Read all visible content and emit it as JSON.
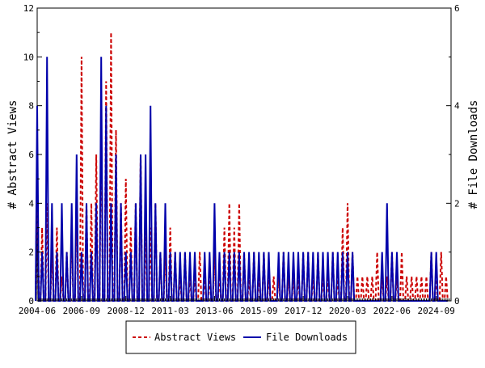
{
  "chart_data": {
    "type": "line",
    "grid": false,
    "legend_position": "bottom",
    "xlabel": "",
    "ylabel_left": "# Abstract Views",
    "ylabel_right": "# File Downloads",
    "x_range": [
      "2004-06",
      "2025-06"
    ],
    "ylim_left": [
      0,
      12
    ],
    "ylim_right": [
      0,
      6
    ],
    "y_ticks_left": [
      "0",
      "2",
      "4",
      "6",
      "8",
      "10",
      "12"
    ],
    "y_ticks_right": [
      "0",
      "2",
      "4",
      "6"
    ],
    "x_ticks": [
      {
        "date": "2004-06",
        "label": "2004-06"
      },
      {
        "date": "2006-09",
        "label": "2006-09"
      },
      {
        "date": "2008-12",
        "label": "2008-12"
      },
      {
        "date": "2011-03",
        "label": "2011-03"
      },
      {
        "date": "2013-06",
        "label": "2013-06"
      },
      {
        "date": "2015-09",
        "label": "2015-09"
      },
      {
        "date": "2017-12",
        "label": "2017-12"
      },
      {
        "date": "2020-03",
        "label": "2020-03"
      },
      {
        "date": "2022-06",
        "label": "2022-06"
      },
      {
        "date": "2024-09",
        "label": "2024-09"
      }
    ],
    "series": [
      {
        "name": "Abstract Views",
        "axis": "left",
        "color": "#cc0000",
        "dash": "dashed",
        "points": [
          [
            "2004-06",
            6
          ],
          [
            "2004-09",
            3
          ],
          [
            "2004-12",
            4
          ],
          [
            "2005-03",
            2
          ],
          [
            "2005-06",
            3
          ],
          [
            "2005-09",
            1
          ],
          [
            "2005-12",
            2
          ],
          [
            "2006-03",
            3
          ],
          [
            "2006-06",
            4
          ],
          [
            "2006-09",
            10
          ],
          [
            "2006-12",
            4
          ],
          [
            "2007-03",
            4
          ],
          [
            "2007-06",
            6
          ],
          [
            "2007-09",
            8
          ],
          [
            "2007-12",
            9
          ],
          [
            "2008-03",
            11
          ],
          [
            "2008-06",
            7
          ],
          [
            "2008-09",
            4
          ],
          [
            "2008-12",
            5
          ],
          [
            "2009-03",
            3
          ],
          [
            "2009-06",
            4
          ],
          [
            "2009-09",
            6
          ],
          [
            "2009-12",
            3
          ],
          [
            "2010-03",
            3
          ],
          [
            "2010-06",
            4
          ],
          [
            "2010-09",
            2
          ],
          [
            "2010-12",
            2
          ],
          [
            "2011-03",
            3
          ],
          [
            "2011-06",
            2
          ],
          [
            "2011-09",
            1
          ],
          [
            "2011-12",
            2
          ],
          [
            "2012-03",
            1
          ],
          [
            "2012-06",
            1
          ],
          [
            "2012-09",
            2
          ],
          [
            "2012-12",
            1
          ],
          [
            "2013-03",
            1
          ],
          [
            "2013-06",
            2
          ],
          [
            "2013-09",
            1
          ],
          [
            "2013-12",
            3
          ],
          [
            "2014-03",
            4
          ],
          [
            "2014-06",
            3
          ],
          [
            "2014-09",
            4
          ],
          [
            "2014-12",
            2
          ],
          [
            "2015-03",
            1
          ],
          [
            "2015-06",
            2
          ],
          [
            "2015-09",
            1
          ],
          [
            "2015-12",
            2
          ],
          [
            "2016-03",
            1
          ],
          [
            "2016-06",
            1
          ],
          [
            "2016-09",
            1
          ],
          [
            "2016-12",
            2
          ],
          [
            "2017-03",
            1
          ],
          [
            "2017-06",
            1
          ],
          [
            "2017-09",
            1
          ],
          [
            "2017-12",
            2
          ],
          [
            "2018-03",
            2
          ],
          [
            "2018-06",
            1
          ],
          [
            "2018-09",
            2
          ],
          [
            "2018-12",
            1
          ],
          [
            "2019-03",
            1
          ],
          [
            "2019-06",
            2
          ],
          [
            "2019-09",
            1
          ],
          [
            "2019-12",
            3
          ],
          [
            "2020-03",
            4
          ],
          [
            "2020-06",
            2
          ],
          [
            "2020-09",
            1
          ],
          [
            "2020-12",
            1
          ],
          [
            "2021-03",
            1
          ],
          [
            "2021-06",
            1
          ],
          [
            "2021-09",
            2
          ],
          [
            "2021-12",
            1
          ],
          [
            "2022-03",
            1
          ],
          [
            "2022-06",
            2
          ],
          [
            "2022-09",
            1
          ],
          [
            "2022-12",
            2
          ],
          [
            "2023-03",
            1
          ],
          [
            "2023-06",
            1
          ],
          [
            "2023-09",
            1
          ],
          [
            "2023-12",
            1
          ],
          [
            "2024-03",
            1
          ],
          [
            "2024-06",
            2
          ],
          [
            "2024-09",
            1
          ],
          [
            "2024-12",
            2
          ],
          [
            "2025-03",
            1
          ]
        ]
      },
      {
        "name": "File Downloads",
        "axis": "right",
        "color": "#0000aa",
        "dash": "solid",
        "points": [
          [
            "2004-06",
            4
          ],
          [
            "2004-09",
            1
          ],
          [
            "2004-12",
            5
          ],
          [
            "2005-03",
            2
          ],
          [
            "2005-06",
            1
          ],
          [
            "2005-09",
            2
          ],
          [
            "2005-12",
            1
          ],
          [
            "2006-03",
            2
          ],
          [
            "2006-06",
            3
          ],
          [
            "2006-09",
            1
          ],
          [
            "2006-12",
            2
          ],
          [
            "2007-03",
            1
          ],
          [
            "2007-06",
            2
          ],
          [
            "2007-09",
            5
          ],
          [
            "2007-12",
            4
          ],
          [
            "2008-03",
            2
          ],
          [
            "2008-06",
            3
          ],
          [
            "2008-09",
            2
          ],
          [
            "2008-12",
            1
          ],
          [
            "2009-03",
            1
          ],
          [
            "2009-06",
            2
          ],
          [
            "2009-09",
            3
          ],
          [
            "2009-12",
            3
          ],
          [
            "2010-03",
            4
          ],
          [
            "2010-06",
            2
          ],
          [
            "2010-09",
            1
          ],
          [
            "2010-12",
            2
          ],
          [
            "2011-03",
            1
          ],
          [
            "2011-06",
            1
          ],
          [
            "2011-09",
            1
          ],
          [
            "2011-12",
            1
          ],
          [
            "2012-03",
            1
          ],
          [
            "2012-06",
            1
          ],
          [
            "2012-09",
            0
          ],
          [
            "2012-12",
            1
          ],
          [
            "2013-03",
            1
          ],
          [
            "2013-06",
            2
          ],
          [
            "2013-09",
            1
          ],
          [
            "2013-12",
            1
          ],
          [
            "2014-03",
            1
          ],
          [
            "2014-06",
            1
          ],
          [
            "2014-09",
            1
          ],
          [
            "2014-12",
            1
          ],
          [
            "2015-03",
            1
          ],
          [
            "2015-06",
            1
          ],
          [
            "2015-09",
            1
          ],
          [
            "2015-12",
            1
          ],
          [
            "2016-03",
            1
          ],
          [
            "2016-06",
            0
          ],
          [
            "2016-09",
            1
          ],
          [
            "2016-12",
            1
          ],
          [
            "2017-03",
            1
          ],
          [
            "2017-06",
            1
          ],
          [
            "2017-09",
            1
          ],
          [
            "2017-12",
            1
          ],
          [
            "2018-03",
            1
          ],
          [
            "2018-06",
            1
          ],
          [
            "2018-09",
            1
          ],
          [
            "2018-12",
            1
          ],
          [
            "2019-03",
            1
          ],
          [
            "2019-06",
            1
          ],
          [
            "2019-09",
            1
          ],
          [
            "2019-12",
            1
          ],
          [
            "2020-03",
            1
          ],
          [
            "2020-06",
            1
          ],
          [
            "2020-09",
            0
          ],
          [
            "2020-12",
            0
          ],
          [
            "2021-03",
            0
          ],
          [
            "2021-06",
            0
          ],
          [
            "2021-09",
            0
          ],
          [
            "2021-12",
            1
          ],
          [
            "2022-03",
            2
          ],
          [
            "2022-06",
            1
          ],
          [
            "2022-09",
            1
          ],
          [
            "2022-12",
            0
          ],
          [
            "2023-03",
            0
          ],
          [
            "2023-06",
            0
          ],
          [
            "2023-09",
            0
          ],
          [
            "2023-12",
            0
          ],
          [
            "2024-03",
            0
          ],
          [
            "2024-06",
            1
          ],
          [
            "2024-09",
            1
          ],
          [
            "2024-12",
            0
          ],
          [
            "2025-03",
            0
          ]
        ]
      }
    ]
  }
}
